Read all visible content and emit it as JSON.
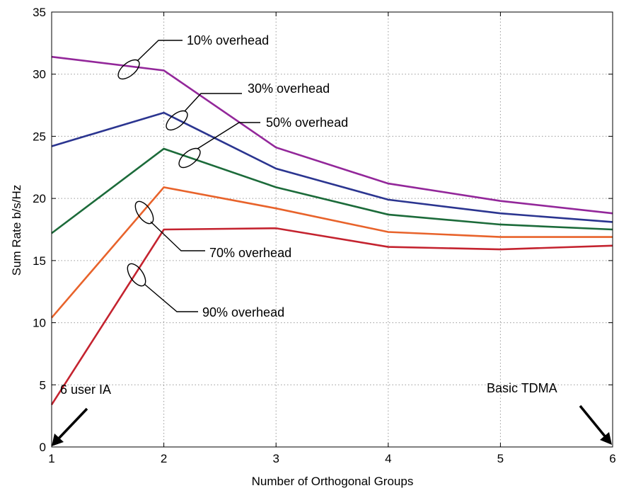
{
  "chart_data": {
    "type": "line",
    "xlabel": "Number of Orthogonal Groups",
    "ylabel": "Sum Rate b/s/Hz",
    "xlim": [
      1,
      6
    ],
    "ylim": [
      0,
      35
    ],
    "x_ticks": [
      "1",
      "2",
      "3",
      "4",
      "5",
      "6"
    ],
    "y_ticks": [
      "0",
      "5",
      "10",
      "15",
      "20",
      "25",
      "30",
      "35"
    ],
    "grid": true,
    "x": [
      1,
      2,
      3,
      4,
      5,
      6
    ],
    "series": [
      {
        "name": "10% overhead",
        "color": "#93279a",
        "values": [
          31.4,
          30.3,
          24.1,
          21.2,
          19.8,
          18.8
        ]
      },
      {
        "name": "30% overhead",
        "color": "#2b3590",
        "values": [
          24.2,
          26.9,
          22.4,
          19.9,
          18.8,
          18.1
        ]
      },
      {
        "name": "50% overhead",
        "color": "#1c6b3a",
        "values": [
          17.2,
          24.0,
          20.9,
          18.7,
          17.9,
          17.5
        ]
      },
      {
        "name": "70% overhead",
        "color": "#e8632b",
        "values": [
          10.4,
          20.9,
          19.2,
          17.3,
          16.9,
          16.9
        ]
      },
      {
        "name": "90% overhead",
        "color": "#c4232f",
        "values": [
          3.4,
          17.5,
          17.6,
          16.1,
          15.9,
          16.2
        ]
      }
    ],
    "annotations": [
      "6 user IA",
      "Basic TDMA"
    ]
  }
}
